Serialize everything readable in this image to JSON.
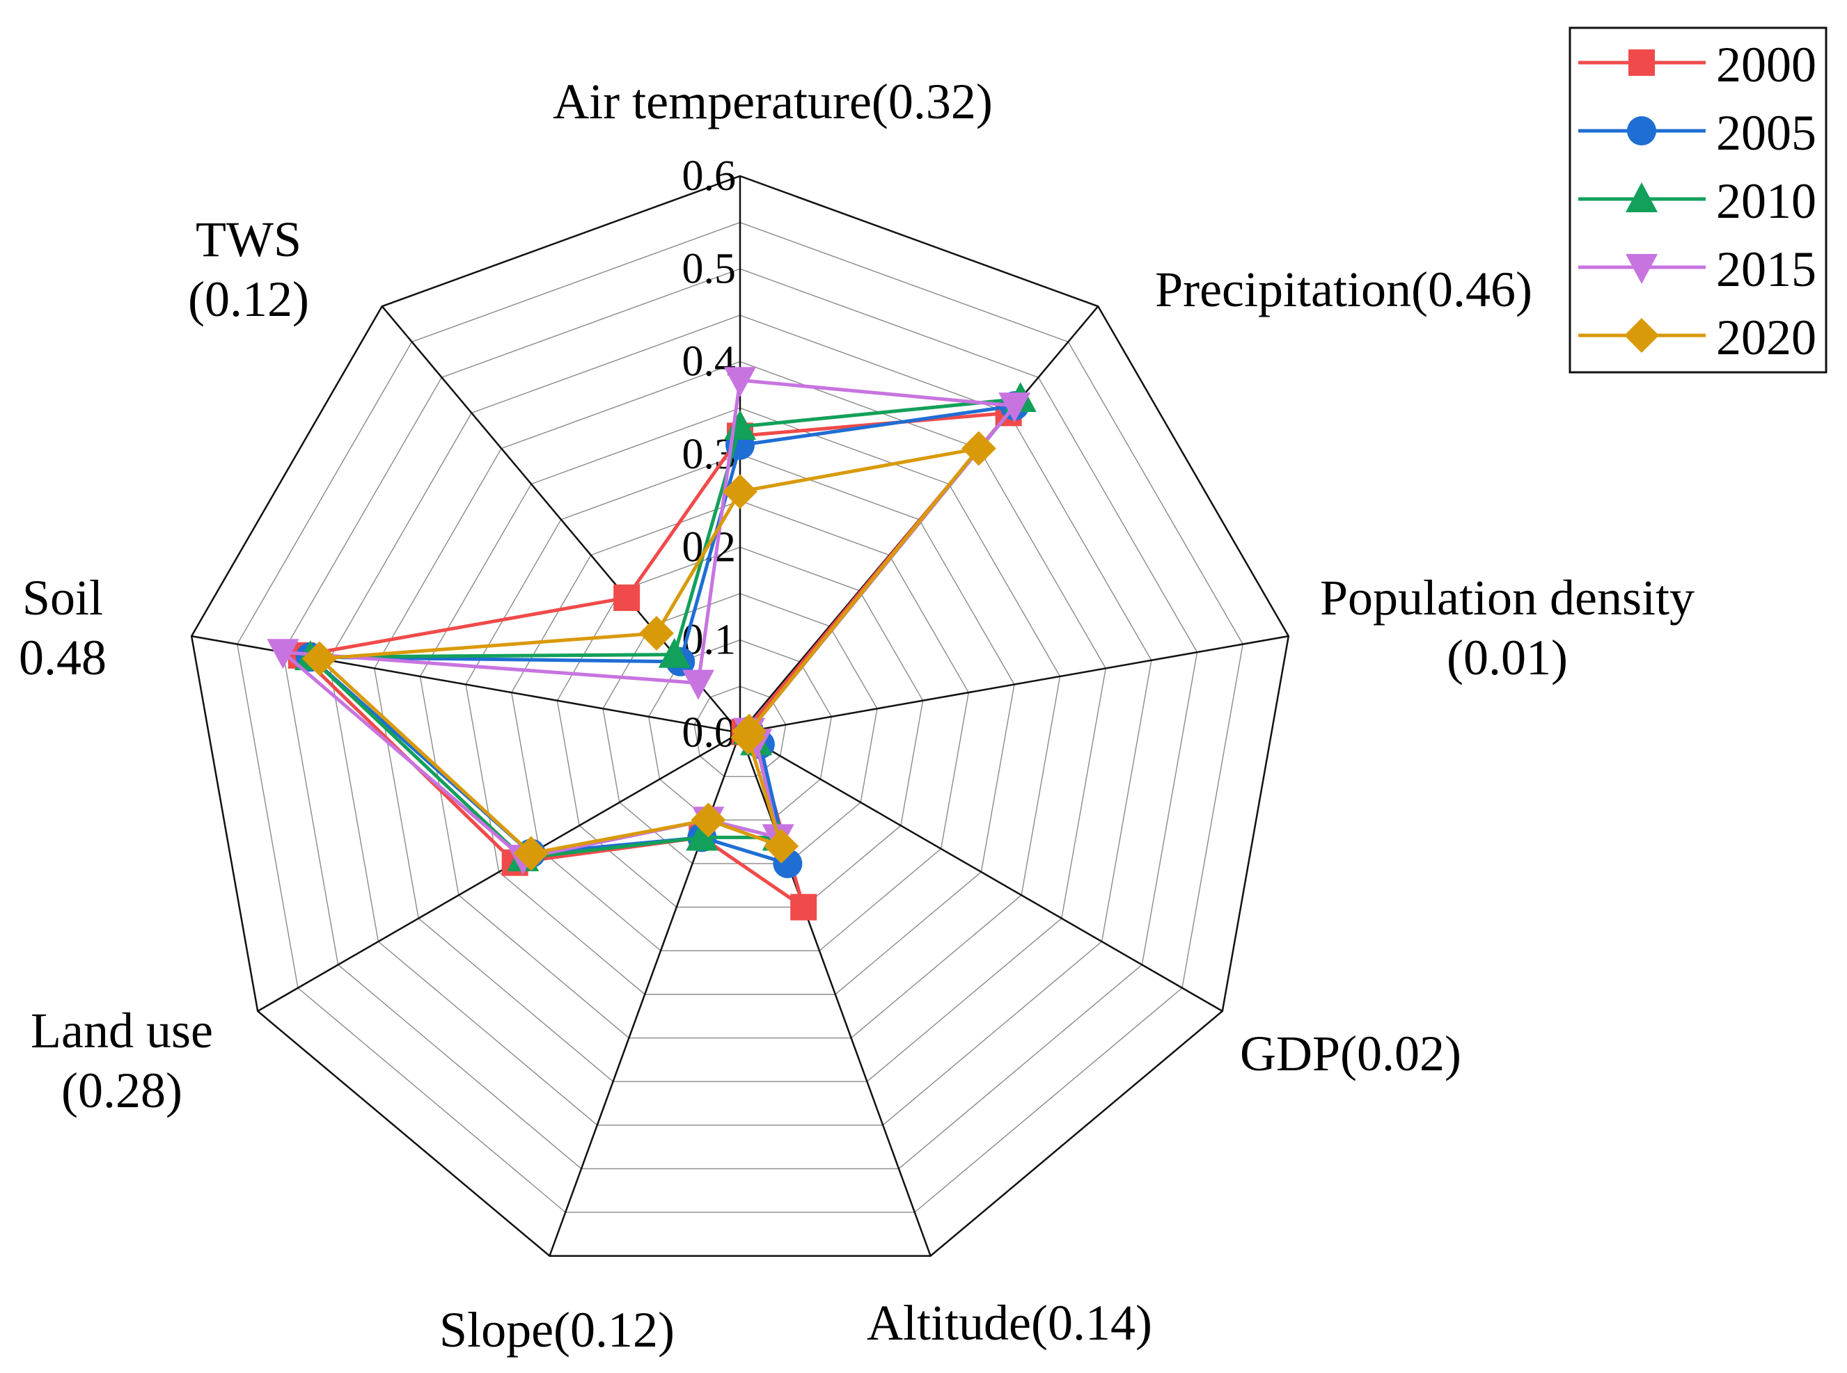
{
  "chart_data": {
    "type": "radar",
    "title": "",
    "axes": [
      {
        "name": "Air temperature",
        "lines": [
          "Air temperature(0.32)"
        ]
      },
      {
        "name": "Precipitation",
        "lines": [
          "Precipitation(0.46)"
        ]
      },
      {
        "name": "Population density",
        "lines": [
          "Population density",
          "(0.01)"
        ]
      },
      {
        "name": "GDP",
        "lines": [
          "GDP(0.02)"
        ]
      },
      {
        "name": "Altitude",
        "lines": [
          "Altitude(0.14)"
        ]
      },
      {
        "name": "Slope",
        "lines": [
          "Slope(0.12)"
        ]
      },
      {
        "name": "Land use",
        "lines": [
          "Land use",
          "(0.28)"
        ]
      },
      {
        "name": "Soil",
        "lines": [
          "Soil",
          "0.48"
        ]
      },
      {
        "name": "TWS",
        "lines": [
          "TWS",
          "(0.12)"
        ]
      }
    ],
    "r_range": [
      0,
      0.6
    ],
    "ticks": [
      "0.0",
      "0.1",
      "0.2",
      "0.3",
      "0.4",
      "0.5",
      "0.6"
    ],
    "tick_values": [
      0,
      0.1,
      0.2,
      0.3,
      0.4,
      0.5,
      0.6
    ],
    "grid": true,
    "legend_position": "top-right",
    "series": [
      {
        "name": "2000",
        "color": "#f04a4a",
        "marker": "square",
        "values": [
          0.32,
          0.45,
          0.005,
          0.02,
          0.2,
          0.12,
          0.28,
          0.48,
          0.19
        ]
      },
      {
        "name": "2005",
        "color": "#1f6ed4",
        "marker": "circle",
        "values": [
          0.31,
          0.46,
          0.01,
          0.025,
          0.15,
          0.12,
          0.26,
          0.47,
          0.1
        ]
      },
      {
        "name": "2010",
        "color": "#12a05a",
        "marker": "triangle-up",
        "values": [
          0.33,
          0.47,
          0.01,
          0.02,
          0.12,
          0.12,
          0.27,
          0.47,
          0.11
        ]
      },
      {
        "name": "2015",
        "color": "#c774e0",
        "marker": "triangle-down",
        "values": [
          0.38,
          0.46,
          0.01,
          0.02,
          0.12,
          0.1,
          0.27,
          0.5,
          0.07
        ]
      },
      {
        "name": "2020",
        "color": "#d99a0a",
        "marker": "diamond",
        "values": [
          0.26,
          0.4,
          0.01,
          0.01,
          0.13,
          0.1,
          0.26,
          0.46,
          0.14
        ]
      }
    ]
  }
}
